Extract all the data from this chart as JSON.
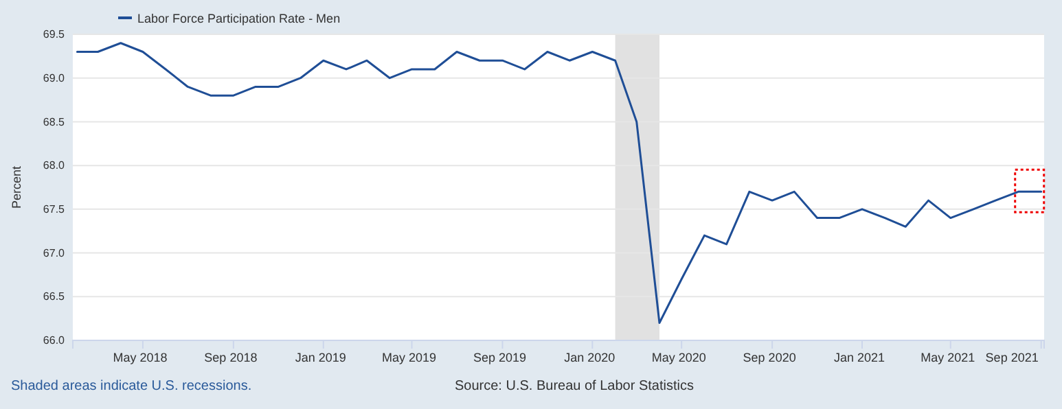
{
  "chart_data": {
    "type": "line",
    "ylabel": "Percent",
    "x": [
      "2018-02",
      "2018-03",
      "2018-04",
      "2018-05",
      "2018-06",
      "2018-07",
      "2018-08",
      "2018-09",
      "2018-10",
      "2018-11",
      "2018-12",
      "2019-01",
      "2019-02",
      "2019-03",
      "2019-04",
      "2019-05",
      "2019-06",
      "2019-07",
      "2019-08",
      "2019-09",
      "2019-10",
      "2019-11",
      "2019-12",
      "2020-01",
      "2020-02",
      "2020-03",
      "2020-04",
      "2020-05",
      "2020-06",
      "2020-07",
      "2020-08",
      "2020-09",
      "2020-10",
      "2020-11",
      "2020-12",
      "2021-01",
      "2021-02",
      "2021-03",
      "2021-04",
      "2021-05",
      "2021-06",
      "2021-07",
      "2021-08",
      "2021-09"
    ],
    "series": [
      {
        "name": "Labor Force Participation Rate - Men",
        "color": "#1f4e96",
        "values": [
          69.3,
          69.3,
          69.4,
          69.3,
          69.1,
          68.9,
          68.8,
          68.8,
          68.9,
          68.9,
          69.0,
          69.2,
          69.1,
          69.2,
          69.0,
          69.1,
          69.1,
          69.3,
          69.2,
          69.2,
          69.1,
          69.3,
          69.2,
          69.3,
          69.2,
          68.5,
          66.2,
          66.7,
          67.2,
          67.1,
          67.7,
          67.6,
          67.7,
          67.4,
          67.4,
          67.5,
          67.4,
          67.3,
          67.6,
          67.4,
          67.5,
          67.6,
          67.7,
          67.7
        ]
      }
    ],
    "xlim": [
      "2018-01-26",
      "2021-09-05"
    ],
    "xticks": [
      {
        "value": "2018-05-01",
        "label": "May 2018"
      },
      {
        "value": "2018-09-01",
        "label": "Sep 2018"
      },
      {
        "value": "2019-01-01",
        "label": "Jan 2019"
      },
      {
        "value": "2019-05-01",
        "label": "May 2019"
      },
      {
        "value": "2019-09-01",
        "label": "Sep 2019"
      },
      {
        "value": "2020-01-01",
        "label": "Jan 2020"
      },
      {
        "value": "2020-05-01",
        "label": "May 2020"
      },
      {
        "value": "2020-09-01",
        "label": "Sep 2020"
      },
      {
        "value": "2021-01-01",
        "label": "Jan 2021"
      },
      {
        "value": "2021-05-01",
        "label": "May 2021"
      },
      {
        "value": "2021-09-01",
        "label": "Sep 2021"
      }
    ],
    "ylim": [
      66,
      69.5
    ],
    "yticks": [
      {
        "value": 66,
        "label": "66.0"
      },
      {
        "value": 66.5,
        "label": "66.5"
      },
      {
        "value": 67,
        "label": "67.0"
      },
      {
        "value": 67.5,
        "label": "67.5"
      },
      {
        "value": 68,
        "label": "68.0"
      },
      {
        "value": 68.5,
        "label": "68.5"
      },
      {
        "value": 69,
        "label": "69.0"
      },
      {
        "value": 69.5,
        "label": "69.5"
      }
    ],
    "bands": [
      {
        "axis": "x",
        "from": "2020-02-01",
        "to": "2020-04-01",
        "color": "#e1e1e1"
      }
    ],
    "grid": "y",
    "legend": "top left",
    "line_style": "solid",
    "marker": "none",
    "annotations": [
      "Shaded areas indicate U.S. recessions.",
      "Source: U.S. Bureau of Labor Statistics"
    ]
  }
}
